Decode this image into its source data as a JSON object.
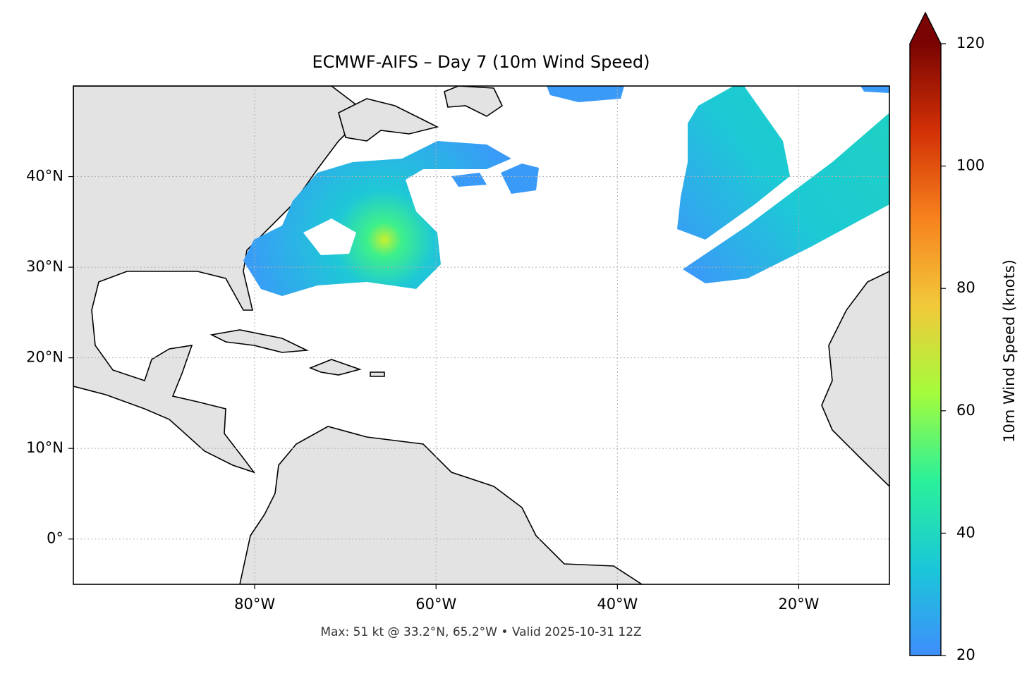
{
  "map": {
    "title": "ECMWF-AIFS – Day 7 (10m Wind Speed)",
    "footer": "Max: 51 kt @ 33.2°N, 65.2°W • Valid 2025-10-31 12Z",
    "lonlim": [
      -100,
      -10
    ],
    "latlim": [
      -5,
      50
    ],
    "xticks": [
      {
        "value": -80,
        "label": "80°W"
      },
      {
        "value": -60,
        "label": "60°W"
      },
      {
        "value": -40,
        "label": "40°W"
      },
      {
        "value": -20,
        "label": "20°W"
      }
    ],
    "yticks": [
      {
        "value": 0,
        "label": "0°"
      },
      {
        "value": 10,
        "label": "10°N"
      },
      {
        "value": 20,
        "label": "20°N"
      },
      {
        "value": 30,
        "label": "30°N"
      },
      {
        "value": 40,
        "label": "40°N"
      }
    ],
    "grid": true,
    "colorbar": {
      "label": "10m Wind Speed (knots)",
      "lim": [
        20,
        120
      ],
      "ticks": [
        20,
        40,
        60,
        80,
        100,
        120
      ],
      "colors": [
        "#3f8efc",
        "#1ac7d8",
        "#2af09a",
        "#a4fc3c",
        "#f2c93a",
        "#f7821e",
        "#d23105",
        "#7a0403"
      ]
    }
  }
}
